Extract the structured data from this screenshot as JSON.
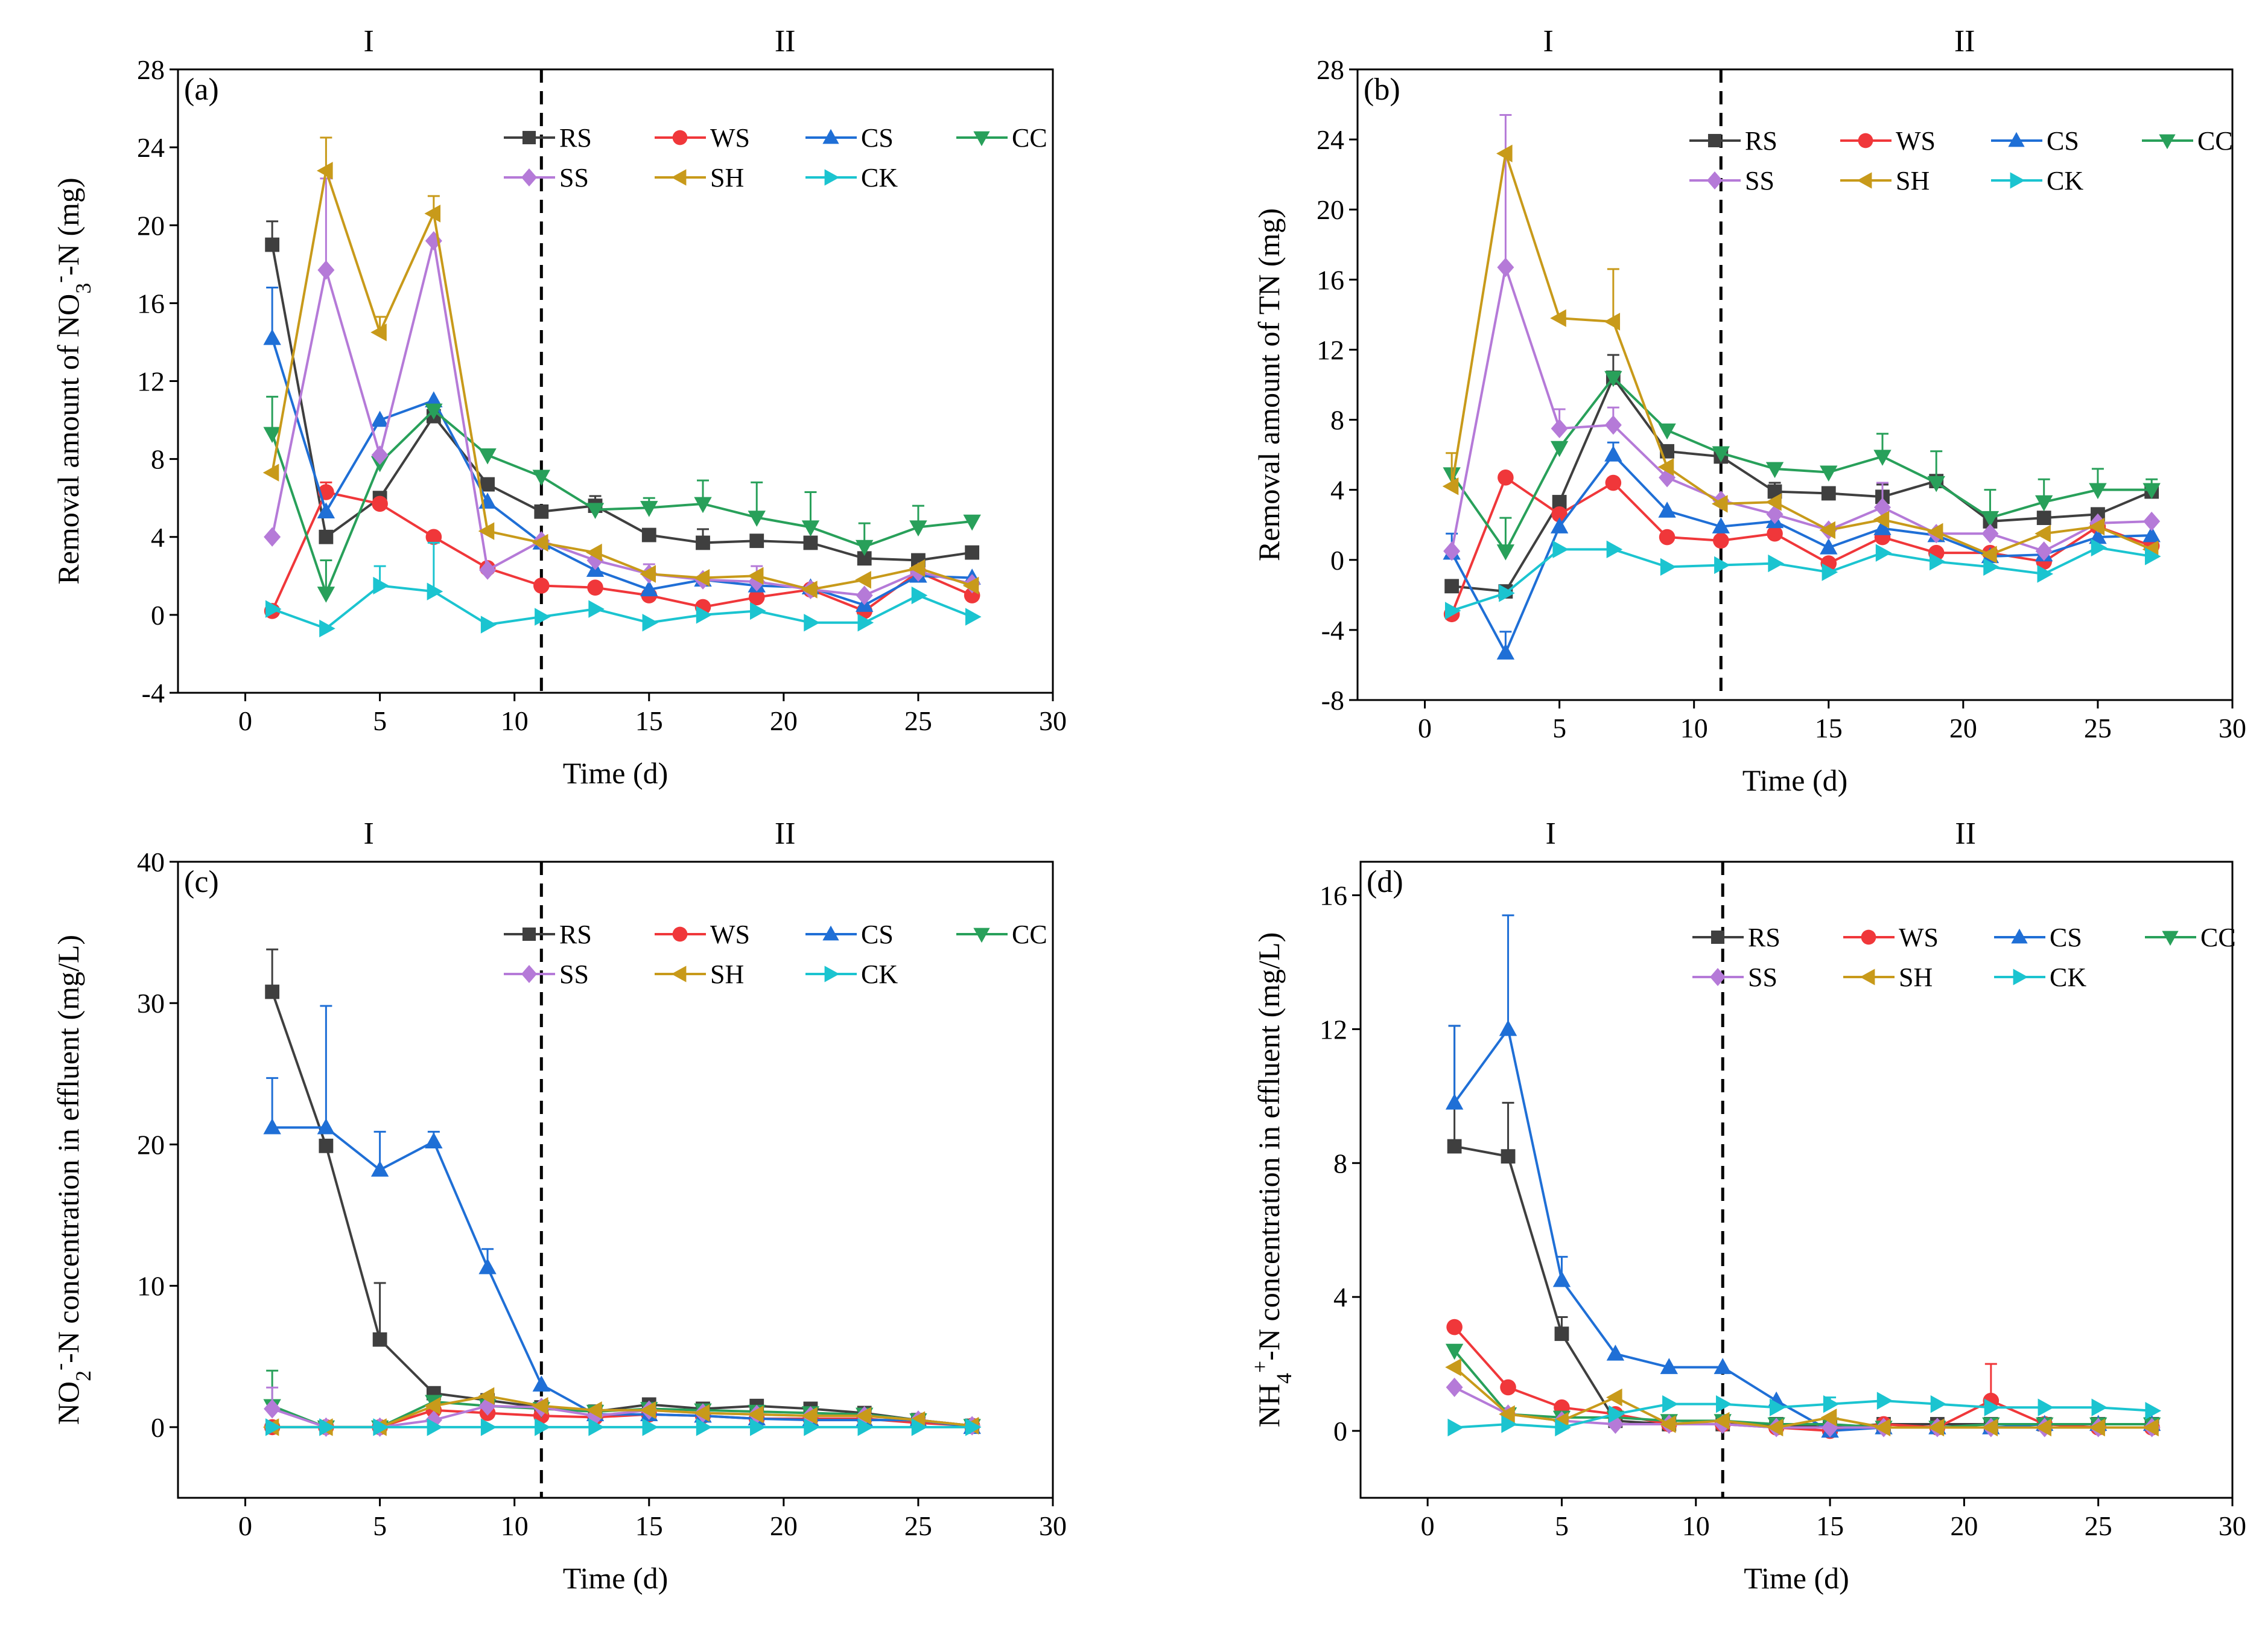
{
  "series_style": [
    {
      "name": "RS",
      "color": "#3f3f3f",
      "marker": "square"
    },
    {
      "name": "WS",
      "color": "#f0373a",
      "marker": "circle"
    },
    {
      "name": "CS",
      "color": "#1f6fd6",
      "marker": "triangle-up"
    },
    {
      "name": "CC",
      "color": "#28a05a",
      "marker": "triangle-down"
    },
    {
      "name": "SS",
      "color": "#b57ad8",
      "marker": "diamond"
    },
    {
      "name": "SH",
      "color": "#c89a1a",
      "marker": "triangle-left"
    },
    {
      "name": "CK",
      "color": "#1bc4d0",
      "marker": "triangle-right"
    }
  ],
  "chart_data": [
    {
      "id": "a",
      "type": "line",
      "panel_label": "(a)",
      "phase_labels": [
        "I",
        "II"
      ],
      "phase_boundary_x": 11,
      "xlabel": "Time (d)",
      "ylabel_parts": {
        "pre": "Removal amount of NO",
        "sub": "3",
        "sup": "-",
        "post": "-N (mg)"
      },
      "xlim": [
        -2.5,
        30
      ],
      "ylim": [
        -4,
        28
      ],
      "xticks": [
        "0",
        "5",
        "10",
        "15",
        "20",
        "25",
        "30"
      ],
      "yticks": [
        "-4",
        "0",
        "4",
        "8",
        "12",
        "16",
        "20",
        "24",
        "28"
      ],
      "x": [
        1,
        3,
        5,
        7,
        9,
        11,
        13,
        15,
        17,
        19,
        21,
        23,
        25,
        27
      ],
      "series": [
        {
          "name": "RS",
          "values": [
            19.0,
            4.0,
            6.0,
            10.2,
            6.7,
            5.3,
            5.6,
            4.1,
            3.7,
            3.8,
            3.7,
            2.9,
            2.8,
            3.2
          ],
          "err": [
            1.2,
            0,
            0,
            0,
            0,
            0,
            0.5,
            0,
            0.7,
            0,
            0,
            0,
            0,
            0
          ]
        },
        {
          "name": "WS",
          "values": [
            0.2,
            6.3,
            5.7,
            4.0,
            2.4,
            1.5,
            1.4,
            1.0,
            0.4,
            0.9,
            1.3,
            0.2,
            2.2,
            1.0
          ],
          "err": [
            0,
            0.5,
            0,
            0,
            0,
            0,
            0,
            0,
            0,
            0,
            0,
            0,
            0,
            0
          ]
        },
        {
          "name": "CS",
          "values": [
            14.2,
            5.3,
            10.0,
            11.0,
            5.8,
            3.7,
            2.3,
            1.3,
            1.8,
            1.5,
            1.4,
            0.5,
            2.0,
            1.9
          ],
          "err": [
            2.6,
            0,
            0,
            0,
            0,
            0,
            0,
            0,
            0,
            0,
            0,
            0,
            0,
            0
          ]
        },
        {
          "name": "CC",
          "values": [
            9.3,
            1.1,
            7.8,
            10.5,
            8.2,
            7.1,
            5.4,
            5.5,
            5.7,
            5.0,
            4.5,
            3.5,
            4.5,
            4.8
          ],
          "err": [
            1.9,
            1.7,
            0,
            0,
            0,
            0,
            0,
            0.5,
            1.2,
            1.8,
            1.8,
            1.2,
            1.1,
            0
          ]
        },
        {
          "name": "SS",
          "values": [
            4.0,
            17.7,
            8.2,
            19.2,
            2.3,
            3.8,
            2.8,
            2.1,
            1.8,
            1.7,
            1.3,
            1.0,
            2.2,
            1.6
          ],
          "err": [
            0,
            4.7,
            0,
            0,
            0,
            0,
            0,
            0.5,
            0,
            0.8,
            0,
            0,
            0,
            0
          ]
        },
        {
          "name": "SH",
          "values": [
            7.3,
            22.8,
            14.5,
            20.6,
            4.3,
            3.7,
            3.2,
            2.1,
            1.9,
            2.0,
            1.3,
            1.8,
            2.4,
            1.5
          ],
          "err": [
            0,
            1.7,
            0.8,
            0.9,
            0,
            0,
            0,
            0,
            0,
            0,
            0,
            0,
            0,
            0
          ]
        },
        {
          "name": "CK",
          "values": [
            0.3,
            -0.7,
            1.5,
            1.2,
            -0.5,
            -0.1,
            0.3,
            -0.4,
            0.0,
            0.2,
            -0.4,
            -0.4,
            1.0,
            -0.1
          ],
          "err": [
            0,
            0,
            1.0,
            2.5,
            0,
            0,
            0,
            0,
            0,
            0,
            0,
            0,
            0,
            0
          ]
        }
      ]
    },
    {
      "id": "b",
      "type": "line",
      "panel_label": "(b)",
      "phase_labels": [
        "I",
        "II"
      ],
      "phase_boundary_x": 11,
      "xlabel": "Time (d)",
      "ylabel_parts": {
        "pre": "Removal amount of TN (mg)",
        "sub": "",
        "sup": "",
        "post": ""
      },
      "xlim": [
        -2.5,
        30
      ],
      "ylim": [
        -8,
        28
      ],
      "xticks": [
        "0",
        "5",
        "10",
        "15",
        "20",
        "25",
        "30"
      ],
      "yticks": [
        "-8",
        "-4",
        "0",
        "4",
        "8",
        "12",
        "16",
        "20",
        "24",
        "28"
      ],
      "x": [
        1,
        3,
        5,
        7,
        9,
        11,
        13,
        15,
        17,
        19,
        21,
        23,
        25,
        27
      ],
      "series": [
        {
          "name": "RS",
          "values": [
            -1.5,
            -1.8,
            3.3,
            10.4,
            6.2,
            5.9,
            3.9,
            3.8,
            3.6,
            4.5,
            2.2,
            2.4,
            2.6,
            3.9
          ],
          "err": [
            0,
            0,
            0,
            1.3,
            0,
            0,
            0.5,
            0,
            0.7,
            0,
            0,
            0,
            0,
            0
          ]
        },
        {
          "name": "WS",
          "values": [
            -3.1,
            4.7,
            2.6,
            4.4,
            1.3,
            1.1,
            1.5,
            -0.2,
            1.3,
            0.4,
            0.4,
            -0.1,
            1.9,
            0.8
          ],
          "err": [
            0,
            0,
            0,
            0,
            0,
            0,
            0,
            0,
            0,
            0,
            0,
            0,
            0,
            0
          ]
        },
        {
          "name": "CS",
          "values": [
            0.4,
            -5.3,
            1.9,
            6.0,
            2.8,
            1.9,
            2.2,
            0.7,
            1.8,
            1.4,
            0.2,
            0.3,
            1.3,
            1.4
          ],
          "err": [
            1.1,
            1.2,
            0,
            0.7,
            0,
            0,
            0,
            0,
            0,
            0,
            0,
            0,
            0,
            0
          ]
        },
        {
          "name": "CC",
          "values": [
            4.9,
            0.5,
            6.4,
            10.4,
            7.4,
            6.1,
            5.2,
            5.0,
            5.9,
            4.4,
            2.4,
            3.3,
            4.0,
            4.0
          ],
          "err": [
            0,
            1.9,
            0,
            0,
            0,
            0,
            0,
            0,
            1.3,
            1.8,
            1.6,
            1.3,
            1.2,
            0.6
          ]
        },
        {
          "name": "SS",
          "values": [
            0.5,
            16.7,
            7.5,
            7.7,
            4.7,
            3.4,
            2.6,
            1.7,
            3.0,
            1.5,
            1.5,
            0.5,
            2.1,
            2.2
          ],
          "err": [
            0,
            8.7,
            1.1,
            1.0,
            0,
            0,
            0,
            0,
            1.4,
            0,
            0,
            0,
            0,
            0
          ]
        },
        {
          "name": "SH",
          "values": [
            4.2,
            23.2,
            13.8,
            13.6,
            5.3,
            3.2,
            3.3,
            1.7,
            2.3,
            1.6,
            0.3,
            1.5,
            1.9,
            0.6
          ],
          "err": [
            1.9,
            0,
            0,
            3.0,
            0,
            0,
            0,
            0,
            0,
            0,
            0,
            0,
            0,
            0
          ]
        },
        {
          "name": "CK",
          "values": [
            -2.9,
            -1.9,
            0.6,
            0.6,
            -0.4,
            -0.3,
            -0.2,
            -0.7,
            0.4,
            -0.1,
            -0.4,
            -0.8,
            0.7,
            0.2
          ],
          "err": [
            0,
            0,
            0,
            0,
            0,
            0,
            0,
            0,
            0,
            0,
            0,
            0,
            0,
            0
          ]
        }
      ]
    },
    {
      "id": "c",
      "type": "line",
      "panel_label": "(c)",
      "phase_labels": [
        "I",
        "II"
      ],
      "phase_boundary_x": 11,
      "xlabel": "Time (d)",
      "ylabel_parts": {
        "pre": "NO",
        "sub": "2",
        "sup": "-",
        "post": "-N concentration in effluent (mg/L)"
      },
      "xlim": [
        -2.5,
        30
      ],
      "ylim": [
        -5,
        40
      ],
      "xticks": [
        "0",
        "5",
        "10",
        "15",
        "20",
        "25",
        "30"
      ],
      "yticks": [
        "0",
        "10",
        "20",
        "30",
        "40"
      ],
      "x": [
        1,
        3,
        5,
        7,
        9,
        11,
        13,
        15,
        17,
        19,
        21,
        23,
        25,
        27
      ],
      "series": [
        {
          "name": "RS",
          "values": [
            30.8,
            19.9,
            6.2,
            2.4,
            1.9,
            1.4,
            1.1,
            1.6,
            1.3,
            1.5,
            1.3,
            1.0,
            0.5,
            0.1
          ],
          "err": [
            3.0,
            0,
            4.0,
            0,
            0,
            0,
            0,
            0,
            0,
            0,
            0,
            0,
            0,
            0
          ]
        },
        {
          "name": "WS",
          "values": [
            0.0,
            0.0,
            0.0,
            1.2,
            1.0,
            0.8,
            0.7,
            0.9,
            0.8,
            0.6,
            0.6,
            0.6,
            0.3,
            0.1
          ],
          "err": [
            0,
            0,
            0,
            0,
            0,
            0,
            0,
            0,
            0,
            0,
            0,
            0,
            0,
            0
          ]
        },
        {
          "name": "CS",
          "values": [
            21.2,
            21.2,
            18.2,
            20.2,
            11.3,
            3.0,
            0.9,
            0.9,
            0.8,
            0.6,
            0.5,
            0.5,
            0.5,
            0.0
          ],
          "err": [
            3.5,
            8.6,
            2.7,
            0.7,
            1.3,
            0,
            0,
            0,
            0,
            0,
            0,
            0,
            0,
            0
          ]
        },
        {
          "name": "CC",
          "values": [
            1.5,
            0.0,
            0.0,
            1.8,
            1.5,
            1.3,
            1.1,
            1.3,
            1.2,
            1.1,
            1.0,
            0.9,
            0.5,
            0.1
          ],
          "err": [
            2.5,
            0,
            0,
            0,
            0,
            0,
            0,
            0,
            0,
            0,
            0,
            0,
            0,
            0
          ]
        },
        {
          "name": "SS",
          "values": [
            1.3,
            0.0,
            0.0,
            0.5,
            1.5,
            1.4,
            0.8,
            1.2,
            1.0,
            0.9,
            0.8,
            0.8,
            0.5,
            0.1
          ],
          "err": [
            1.5,
            0,
            0,
            0,
            0,
            0,
            0,
            0,
            0,
            0,
            0,
            0,
            0,
            0
          ]
        },
        {
          "name": "SH",
          "values": [
            0.0,
            0.0,
            0.0,
            1.5,
            2.2,
            1.5,
            1.2,
            1.2,
            1.0,
            0.9,
            0.8,
            0.8,
            0.5,
            0.1
          ],
          "err": [
            0,
            0,
            0,
            0,
            0,
            0,
            0,
            0,
            0,
            0,
            0,
            0,
            0,
            0
          ]
        },
        {
          "name": "CK",
          "values": [
            0.0,
            0.0,
            0.0,
            0.0,
            0.0,
            0.0,
            0.0,
            0.0,
            0.0,
            0.0,
            0.0,
            0.0,
            0.0,
            0.0
          ],
          "err": [
            0,
            0,
            0,
            0,
            0,
            0,
            0,
            0,
            0,
            0,
            0,
            0,
            0,
            0
          ]
        }
      ]
    },
    {
      "id": "d",
      "type": "line",
      "panel_label": "(d)",
      "phase_labels": [
        "I",
        "II"
      ],
      "phase_boundary_x": 11,
      "xlabel": "Time (d)",
      "ylabel_parts": {
        "pre": "NH",
        "sub": "4",
        "sup": "+",
        "post": "-N concentration in effluent (mg/L)"
      },
      "xlim": [
        -2.5,
        30
      ],
      "ylim": [
        -2,
        17
      ],
      "xticks": [
        "0",
        "5",
        "10",
        "15",
        "20",
        "25",
        "30"
      ],
      "yticks": [
        "0",
        "4",
        "8",
        "12",
        "16"
      ],
      "x": [
        1,
        3,
        5,
        7,
        9,
        11,
        13,
        15,
        17,
        19,
        21,
        23,
        25,
        27
      ],
      "series": [
        {
          "name": "RS",
          "values": [
            8.5,
            8.2,
            2.9,
            0.3,
            0.2,
            0.2,
            0.2,
            0.1,
            0.2,
            0.2,
            0.2,
            0.2,
            0.2,
            0.2
          ],
          "err": [
            3.6,
            1.6,
            0.5,
            0,
            0,
            0,
            0,
            0,
            0,
            0,
            0,
            0,
            0,
            0
          ]
        },
        {
          "name": "WS",
          "values": [
            3.1,
            1.3,
            0.7,
            0.5,
            0.2,
            0.2,
            0.1,
            0.0,
            0.2,
            0.1,
            0.9,
            0.2,
            0.1,
            0.1
          ],
          "err": [
            0,
            0,
            0,
            0,
            0,
            0,
            0,
            0,
            0,
            0,
            1.1,
            0,
            0,
            0
          ]
        },
        {
          "name": "CS",
          "values": [
            9.8,
            12.0,
            4.5,
            2.3,
            1.9,
            1.9,
            0.9,
            0.0,
            0.1,
            0.1,
            0.1,
            0.2,
            0.2,
            0.2
          ],
          "err": [
            2.3,
            3.4,
            0.7,
            0,
            0,
            0,
            0,
            0,
            0,
            0,
            0,
            0,
            0,
            0
          ]
        },
        {
          "name": "CC",
          "values": [
            2.4,
            0.5,
            0.4,
            0.4,
            0.3,
            0.3,
            0.2,
            0.2,
            0.1,
            0.1,
            0.2,
            0.2,
            0.2,
            0.2
          ],
          "err": [
            0,
            0,
            0,
            0,
            0,
            0,
            0,
            0,
            0,
            0,
            0,
            0,
            0,
            0
          ]
        },
        {
          "name": "SS",
          "values": [
            1.3,
            0.5,
            0.3,
            0.2,
            0.2,
            0.2,
            0.1,
            0.1,
            0.1,
            0.1,
            0.1,
            0.1,
            0.1,
            0.1
          ],
          "err": [
            0,
            0,
            0,
            0,
            0,
            0,
            0,
            0,
            0,
            0,
            0,
            0,
            0,
            0
          ]
        },
        {
          "name": "SH",
          "values": [
            1.9,
            0.5,
            0.3,
            1.0,
            0.2,
            0.3,
            0.1,
            0.4,
            0.1,
            0.1,
            0.1,
            0.1,
            0.1,
            0.1
          ],
          "err": [
            0,
            0,
            0,
            0,
            0,
            0,
            0,
            0,
            0,
            0,
            0,
            0,
            0,
            0
          ]
        },
        {
          "name": "CK",
          "values": [
            0.1,
            0.2,
            0.1,
            0.5,
            0.8,
            0.8,
            0.7,
            0.8,
            0.9,
            0.8,
            0.7,
            0.7,
            0.7,
            0.6
          ],
          "err": [
            0,
            0,
            0,
            0,
            0,
            0,
            0,
            0.2,
            0,
            0,
            0,
            0,
            0,
            0
          ]
        }
      ]
    }
  ]
}
